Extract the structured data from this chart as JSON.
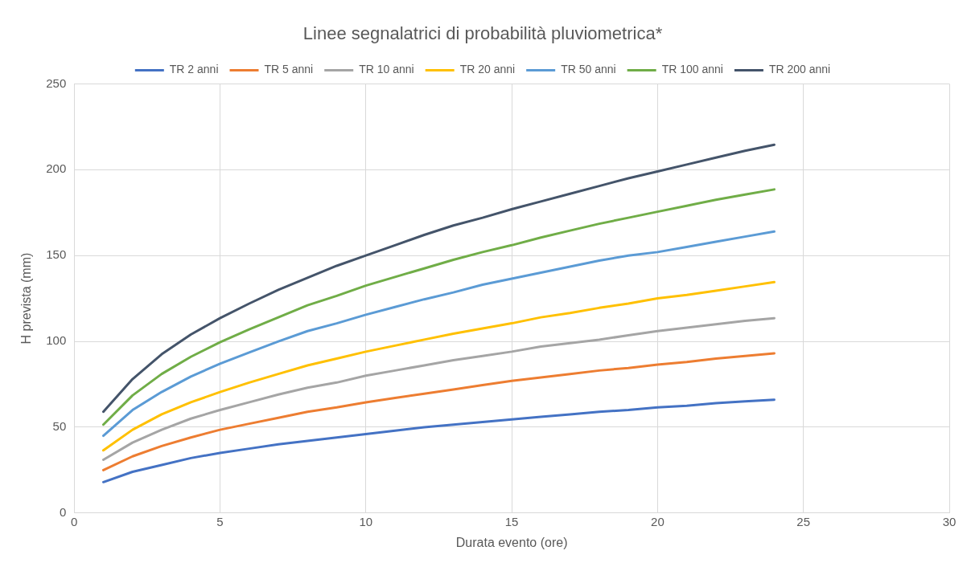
{
  "chart_data": {
    "type": "line",
    "title": "Linee segnalatrici di probabilità pluviometrica*",
    "xlabel": "Durata evento (ore)",
    "ylabel": "H prevista (mm)",
    "x": [
      1,
      2,
      3,
      4,
      5,
      6,
      7,
      8,
      9,
      10,
      11,
      12,
      13,
      14,
      15,
      16,
      17,
      18,
      19,
      20,
      21,
      22,
      23,
      24
    ],
    "series": [
      {
        "name": "TR 2 anni",
        "color": "#4472c4",
        "values": [
          18,
          24,
          28,
          32,
          35,
          37.5,
          40,
          42,
          44,
          46,
          48,
          50,
          51.5,
          53,
          54.5,
          56,
          57.5,
          59,
          60,
          61.5,
          62.5,
          64,
          65,
          66
        ]
      },
      {
        "name": "TR 5 anni",
        "color": "#ed7d31",
        "values": [
          25,
          33,
          39,
          44,
          48.5,
          52,
          55.5,
          59,
          61.5,
          64.5,
          67,
          69.5,
          72,
          74.5,
          77,
          79,
          81,
          83,
          84.5,
          86.5,
          88,
          90,
          91.5,
          93
        ]
      },
      {
        "name": "TR 10 anni",
        "color": "#a5a5a5",
        "values": [
          31,
          41,
          48.5,
          55,
          60,
          64.5,
          69,
          73,
          76,
          80,
          83,
          86,
          89,
          91.5,
          94,
          97,
          99,
          101,
          103.5,
          106,
          108,
          110,
          112,
          113.5
        ]
      },
      {
        "name": "TR 20 anni",
        "color": "#ffc000",
        "values": [
          36.5,
          48.5,
          57.5,
          64.5,
          70.5,
          76,
          81,
          86,
          90,
          94,
          97.5,
          101,
          104.5,
          107.5,
          110.5,
          114,
          116.5,
          119.5,
          122,
          125,
          127,
          129.5,
          132,
          134.5
        ]
      },
      {
        "name": "TR 50 anni",
        "color": "#5b9bd5",
        "values": [
          45,
          60,
          70.5,
          79.5,
          87,
          93.5,
          100,
          106,
          110.5,
          115.5,
          120,
          124.5,
          128.5,
          133,
          136.5,
          140,
          143.5,
          147,
          150,
          152,
          155,
          158,
          161,
          164
        ]
      },
      {
        "name": "TR 100 anni",
        "color": "#70ad47",
        "values": [
          51.5,
          68.5,
          81,
          91,
          99.5,
          107,
          114,
          121,
          126.5,
          132.5,
          137.5,
          142.5,
          147.5,
          152,
          156,
          160.5,
          164.5,
          168.5,
          172,
          175.5,
          179,
          182.5,
          185.5,
          188.5
        ]
      },
      {
        "name": "TR 200 anni",
        "color": "#44546a",
        "values": [
          59,
          78,
          92.5,
          104,
          113.5,
          122,
          130,
          137,
          144,
          150,
          156,
          162,
          167.5,
          172,
          177,
          181.5,
          186,
          190.5,
          195,
          199,
          203,
          207,
          211,
          214.5
        ]
      }
    ],
    "xlim": [
      0,
      30
    ],
    "xticks": [
      0,
      5,
      10,
      15,
      20,
      25,
      30
    ],
    "ylim": [
      0,
      250
    ],
    "yticks": [
      0,
      50,
      100,
      150,
      200,
      250
    ],
    "grid": true,
    "legend": "top",
    "marker": "none",
    "line_style": "solid"
  }
}
